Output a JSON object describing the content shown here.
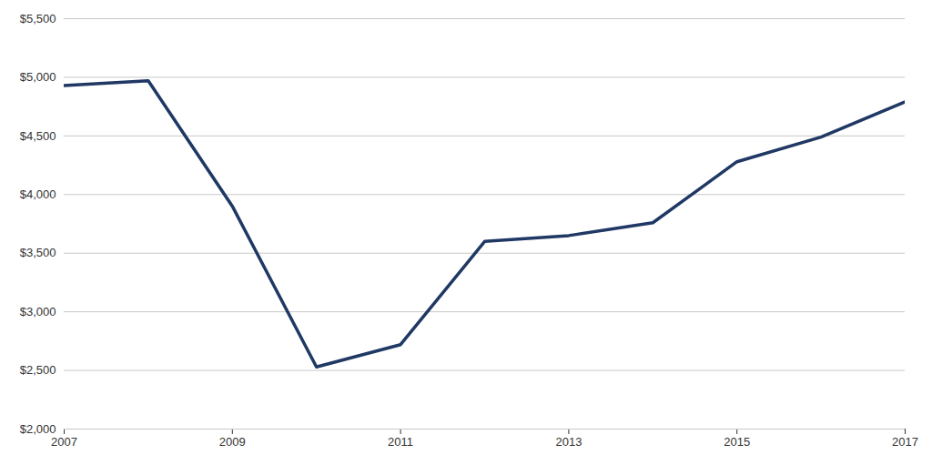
{
  "chart_data": {
    "type": "line",
    "x": [
      2007,
      2008,
      2009,
      2010,
      2011,
      2012,
      2013,
      2014,
      2015,
      2016,
      2017
    ],
    "values": [
      4930,
      4970,
      3900,
      2530,
      2720,
      3600,
      3650,
      3760,
      4280,
      4490,
      4790
    ],
    "color": "#1F3864",
    "xlim": [
      2007,
      2017
    ],
    "xticks": [
      2007,
      2009,
      2011,
      2013,
      2015,
      2017
    ],
    "ylim": [
      2000,
      5500
    ],
    "yticks": [
      {
        "value": 2000,
        "label": "$2,000"
      },
      {
        "value": 2500,
        "label": "$2,500"
      },
      {
        "value": 3000,
        "label": "$3,000"
      },
      {
        "value": 3500,
        "label": "$3,500"
      },
      {
        "value": 4000,
        "label": "$4,000"
      },
      {
        "value": 4500,
        "label": "$4,500"
      },
      {
        "value": 5000,
        "label": "$5,000"
      },
      {
        "value": 5500,
        "label": "$5,500"
      }
    ],
    "grid": "y"
  }
}
